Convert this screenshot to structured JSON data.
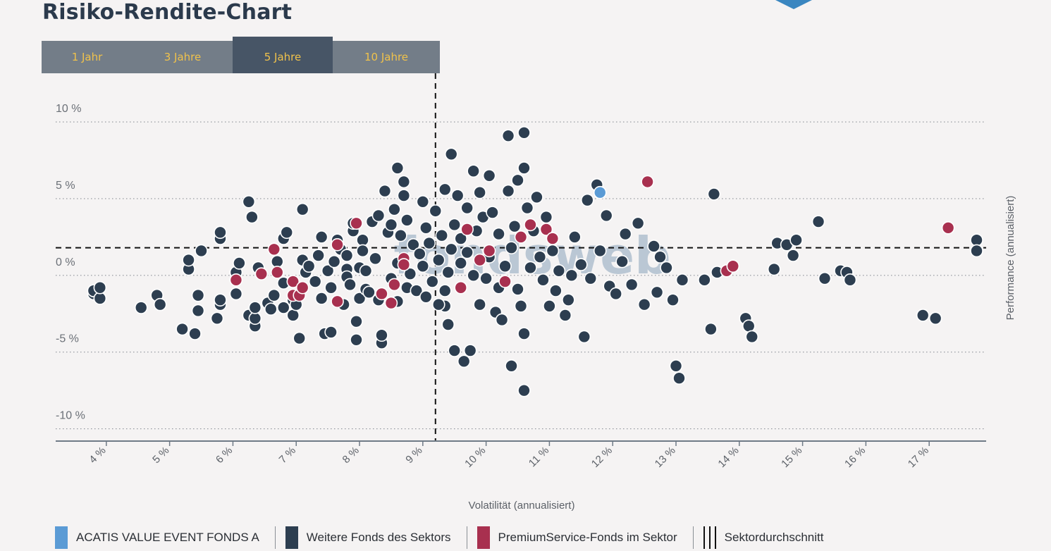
{
  "page": {
    "title": "Risiko-Rendite-Chart"
  },
  "tabs": [
    {
      "label": "1 Jahr",
      "active": false
    },
    {
      "label": "3 Jahre",
      "active": false
    },
    {
      "label": "5 Jahre",
      "active": true
    },
    {
      "label": "10 Jahre",
      "active": false
    }
  ],
  "watermark": "fondsweb",
  "legend": {
    "focus": "ACATIS VALUE EVENT FONDS A",
    "others": "Weitere Fonds des Sektors",
    "premium": "PremiumService-Fonds im Sektor",
    "average": "Sektordurchschnitt"
  },
  "colors": {
    "focus": "#5b9bd5",
    "others": "#2d3e50",
    "premium": "#a8304f",
    "background": "#f5f3f3",
    "tab_text": "#f0c24b"
  },
  "chart_data": {
    "type": "scatter",
    "xlabel": "Volatilität (annualisiert)",
    "ylabel": "Performance (annualisiert)",
    "xlim": [
      3.2,
      17.9
    ],
    "ylim": [
      -10.8,
      10.6
    ],
    "x_ticks": [
      4,
      5,
      6,
      7,
      8,
      9,
      10,
      11,
      12,
      13,
      14,
      15,
      16,
      17
    ],
    "x_tick_labels": [
      "4 %",
      "5 %",
      "6 %",
      "7 %",
      "8 %",
      "9 %",
      "10 %",
      "11 %",
      "12 %",
      "13 %",
      "14 %",
      "15 %",
      "16 %",
      "17 %"
    ],
    "y_ticks": [
      10,
      5,
      0,
      -5,
      -10
    ],
    "y_tick_labels": [
      "10 %",
      "5 %",
      "0 %",
      "-5 %",
      "-10 %"
    ],
    "grid": "horizontal-dotted",
    "sector_average": {
      "x": 9.2,
      "y": 1.8
    },
    "series": [
      {
        "name": "ACATIS VALUE EVENT FONDS A",
        "points": [
          [
            11.8,
            5.4
          ]
        ]
      },
      {
        "name": "PremiumService-Fonds im Sektor",
        "points": [
          [
            6.05,
            -0.3
          ],
          [
            6.45,
            0.1
          ],
          [
            6.65,
            1.7
          ],
          [
            6.7,
            0.2
          ],
          [
            6.95,
            -1.3
          ],
          [
            6.95,
            -0.4
          ],
          [
            7.05,
            -1.3
          ],
          [
            7.1,
            -0.8
          ],
          [
            7.65,
            -1.7
          ],
          [
            7.65,
            2.0
          ],
          [
            7.95,
            3.4
          ],
          [
            8.35,
            -1.2
          ],
          [
            8.5,
            -1.8
          ],
          [
            8.55,
            -0.6
          ],
          [
            8.7,
            1.1
          ],
          [
            8.7,
            0.7
          ],
          [
            9.6,
            -0.8
          ],
          [
            9.7,
            3.0
          ],
          [
            9.9,
            1.0
          ],
          [
            10.05,
            1.6
          ],
          [
            10.3,
            -0.4
          ],
          [
            10.55,
            2.5
          ],
          [
            10.7,
            3.3
          ],
          [
            10.95,
            3.0
          ],
          [
            11.05,
            2.4
          ],
          [
            12.55,
            6.1
          ],
          [
            13.8,
            0.3
          ],
          [
            13.9,
            0.6
          ],
          [
            17.3,
            3.1
          ]
        ]
      },
      {
        "name": "Weitere Fonds des Sektors",
        "points": [
          [
            3.8,
            -1.2
          ],
          [
            3.8,
            -1.0
          ],
          [
            3.9,
            -1.5
          ],
          [
            3.9,
            -0.8
          ],
          [
            4.55,
            -2.1
          ],
          [
            4.8,
            -1.3
          ],
          [
            4.85,
            -1.9
          ],
          [
            5.2,
            -3.5
          ],
          [
            5.3,
            0.4
          ],
          [
            5.3,
            1.0
          ],
          [
            5.4,
            -3.8
          ],
          [
            5.45,
            -2.3
          ],
          [
            5.45,
            -1.3
          ],
          [
            5.5,
            1.6
          ],
          [
            5.75,
            -2.8
          ],
          [
            5.8,
            2.4
          ],
          [
            5.8,
            2.8
          ],
          [
            5.8,
            -1.9
          ],
          [
            5.8,
            -1.6
          ],
          [
            6.05,
            -1.2
          ],
          [
            6.05,
            0.2
          ],
          [
            6.1,
            0.8
          ],
          [
            6.25,
            -2.6
          ],
          [
            6.25,
            4.8
          ],
          [
            6.3,
            3.8
          ],
          [
            6.35,
            -3.3
          ],
          [
            6.35,
            -2.8
          ],
          [
            6.35,
            -2.1
          ],
          [
            6.4,
            0.5
          ],
          [
            6.55,
            -1.8
          ],
          [
            6.6,
            -2.2
          ],
          [
            6.65,
            -1.3
          ],
          [
            6.7,
            0.9
          ],
          [
            6.8,
            -2.1
          ],
          [
            6.8,
            2.4
          ],
          [
            6.8,
            -0.5
          ],
          [
            6.85,
            2.8
          ],
          [
            6.95,
            -2.6
          ],
          [
            6.95,
            -1.6
          ],
          [
            7.0,
            -1.9
          ],
          [
            7.1,
            1.0
          ],
          [
            7.1,
            4.3
          ],
          [
            7.15,
            0.2
          ],
          [
            7.2,
            0.6
          ],
          [
            7.3,
            -0.4
          ],
          [
            7.35,
            1.3
          ],
          [
            7.4,
            2.5
          ],
          [
            7.4,
            -1.5
          ],
          [
            7.45,
            -3.8
          ],
          [
            7.5,
            0.3
          ],
          [
            7.55,
            -0.8
          ],
          [
            7.55,
            -3.7
          ],
          [
            7.6,
            0.9
          ],
          [
            7.65,
            2.3
          ],
          [
            7.7,
            1.7
          ],
          [
            7.75,
            -1.9
          ],
          [
            7.8,
            0.4
          ],
          [
            7.8,
            -0.1
          ],
          [
            7.8,
            1.3
          ],
          [
            7.85,
            -0.6
          ],
          [
            7.9,
            2.9
          ],
          [
            7.9,
            3.4
          ],
          [
            7.95,
            -4.2
          ],
          [
            7.95,
            -3.0
          ],
          [
            8.0,
            -1.5
          ],
          [
            8.0,
            0.5
          ],
          [
            8.05,
            2.3
          ],
          [
            8.05,
            1.6
          ],
          [
            8.1,
            -0.9
          ],
          [
            8.1,
            0.3
          ],
          [
            8.15,
            -1.1
          ],
          [
            8.2,
            3.5
          ],
          [
            8.25,
            1.1
          ],
          [
            8.3,
            3.9
          ],
          [
            8.3,
            -1.6
          ],
          [
            8.35,
            -4.4
          ],
          [
            8.35,
            -3.9
          ],
          [
            8.4,
            5.5
          ],
          [
            8.45,
            2.8
          ],
          [
            8.5,
            -0.2
          ],
          [
            8.5,
            3.3
          ],
          [
            8.55,
            4.3
          ],
          [
            8.6,
            7.0
          ],
          [
            8.6,
            0.8
          ],
          [
            8.65,
            2.6
          ],
          [
            8.7,
            5.2
          ],
          [
            8.7,
            6.1
          ],
          [
            8.75,
            -0.8
          ],
          [
            8.75,
            3.6
          ],
          [
            8.8,
            0.1
          ],
          [
            8.85,
            2.0
          ],
          [
            8.9,
            -1.0
          ],
          [
            8.95,
            1.4
          ],
          [
            9.0,
            4.8
          ],
          [
            9.0,
            0.6
          ],
          [
            9.05,
            3.1
          ],
          [
            9.05,
            -1.4
          ],
          [
            9.1,
            2.1
          ],
          [
            9.15,
            -0.4
          ],
          [
            9.2,
            4.2
          ],
          [
            9.25,
            1.0
          ],
          [
            9.3,
            2.6
          ],
          [
            9.35,
            -2.0
          ],
          [
            9.35,
            -1.0
          ],
          [
            9.35,
            5.6
          ],
          [
            9.4,
            -3.2
          ],
          [
            9.4,
            0.2
          ],
          [
            9.45,
            7.9
          ],
          [
            9.45,
            1.7
          ],
          [
            9.5,
            -4.9
          ],
          [
            9.5,
            3.3
          ],
          [
            9.55,
            5.2
          ],
          [
            9.6,
            2.4
          ],
          [
            9.6,
            0.8
          ],
          [
            9.65,
            -5.6
          ],
          [
            9.7,
            4.4
          ],
          [
            9.7,
            1.5
          ],
          [
            9.75,
            -4.9
          ],
          [
            9.8,
            6.8
          ],
          [
            9.8,
            0.0
          ],
          [
            9.85,
            2.9
          ],
          [
            9.9,
            5.4
          ],
          [
            9.9,
            -1.9
          ],
          [
            9.95,
            3.8
          ],
          [
            10.0,
            -0.2
          ],
          [
            10.05,
            1.2
          ],
          [
            10.05,
            6.5
          ],
          [
            10.1,
            4.1
          ],
          [
            10.15,
            -2.4
          ],
          [
            10.2,
            2.7
          ],
          [
            10.25,
            -2.9
          ],
          [
            10.3,
            0.6
          ],
          [
            10.35,
            9.1
          ],
          [
            10.35,
            5.5
          ],
          [
            10.4,
            -5.9
          ],
          [
            10.4,
            1.8
          ],
          [
            10.45,
            3.2
          ],
          [
            10.5,
            -0.9
          ],
          [
            10.5,
            6.2
          ],
          [
            10.55,
            -2.0
          ],
          [
            10.6,
            9.3
          ],
          [
            10.6,
            7.0
          ],
          [
            10.6,
            -7.5
          ],
          [
            10.65,
            4.4
          ],
          [
            10.7,
            0.5
          ],
          [
            10.75,
            2.9
          ],
          [
            10.8,
            5.1
          ],
          [
            10.85,
            1.2
          ],
          [
            10.9,
            -0.3
          ],
          [
            10.95,
            3.8
          ],
          [
            11.0,
            -2.0
          ],
          [
            11.05,
            1.6
          ],
          [
            11.1,
            -1.0
          ],
          [
            11.15,
            0.3
          ],
          [
            11.25,
            -2.6
          ],
          [
            11.3,
            -1.6
          ],
          [
            11.4,
            2.5
          ],
          [
            11.5,
            0.7
          ],
          [
            11.6,
            4.9
          ],
          [
            11.65,
            -0.2
          ],
          [
            11.75,
            5.9
          ],
          [
            11.8,
            1.6
          ],
          [
            11.9,
            3.9
          ],
          [
            11.95,
            -0.7
          ],
          [
            12.05,
            -1.2
          ],
          [
            12.15,
            0.9
          ],
          [
            12.2,
            2.7
          ],
          [
            12.3,
            -0.6
          ],
          [
            12.4,
            3.4
          ],
          [
            12.5,
            -1.9
          ],
          [
            12.65,
            1.9
          ],
          [
            12.7,
            -1.1
          ],
          [
            12.75,
            1.2
          ],
          [
            12.85,
            0.5
          ],
          [
            12.95,
            -1.6
          ],
          [
            13.0,
            -5.9
          ],
          [
            13.05,
            -6.7
          ],
          [
            13.1,
            -0.3
          ],
          [
            13.45,
            -0.3
          ],
          [
            13.55,
            -3.5
          ],
          [
            13.6,
            5.3
          ],
          [
            13.65,
            0.2
          ],
          [
            14.1,
            -2.8
          ],
          [
            14.15,
            -3.3
          ],
          [
            14.2,
            -4.0
          ],
          [
            14.55,
            0.4
          ],
          [
            14.6,
            2.1
          ],
          [
            14.75,
            2.0
          ],
          [
            14.85,
            1.3
          ],
          [
            14.9,
            2.3
          ],
          [
            15.25,
            3.5
          ],
          [
            15.35,
            -0.2
          ],
          [
            15.6,
            0.3
          ],
          [
            15.7,
            0.2
          ],
          [
            15.75,
            -0.3
          ],
          [
            16.9,
            -2.6
          ],
          [
            17.1,
            -2.8
          ],
          [
            17.75,
            2.3
          ],
          [
            17.75,
            1.6
          ],
          [
            7.05,
            -4.1
          ],
          [
            10.2,
            -0.8
          ],
          [
            11.35,
            0.0
          ],
          [
            8.6,
            -1.7
          ],
          [
            9.25,
            -1.9
          ],
          [
            10.6,
            -3.8
          ],
          [
            11.55,
            -4.0
          ]
        ]
      }
    ]
  }
}
